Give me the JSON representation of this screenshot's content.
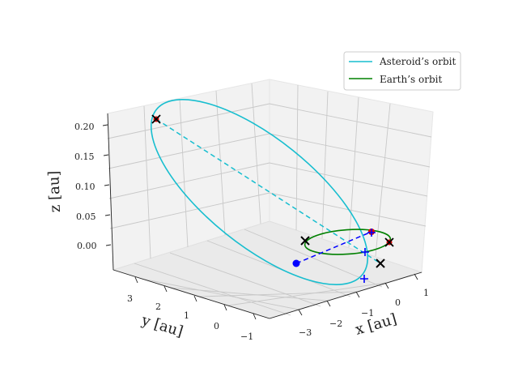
{
  "chart_data": {
    "type": "scatter",
    "projection": "3d",
    "axes": {
      "x": {
        "label": "x [au]",
        "ticks": [
          "1",
          "0",
          "−1",
          "−2",
          "−3"
        ]
      },
      "y": {
        "label": "y [au]",
        "ticks": [
          "3",
          "2",
          "1",
          "0",
          "−1"
        ]
      },
      "z": {
        "label": "z [au]",
        "ticks": [
          "0.20",
          "0.15",
          "0.10",
          "0.05",
          "0.00"
        ]
      }
    },
    "grid": true,
    "legend": {
      "placement": "top-right",
      "entries": [
        {
          "name": "Asteroid’s orbit",
          "color": "#17becf"
        },
        {
          "name": "Earth’s orbit",
          "color": "#008000"
        }
      ]
    },
    "series": [
      {
        "name": "Asteroid’s orbit",
        "color": "#17becf",
        "style": "ellipse-solid"
      },
      {
        "name": "Earth’s orbit",
        "color": "#008000",
        "style": "ellipse-solid"
      }
    ],
    "markers": {
      "asteroid_apsides_line_color": "#17becf",
      "earth_apsides_line_color": "#0000ff",
      "x_marker_color": "#000000",
      "red_marker_color": "#e00000",
      "blue_marker_color": "#0000ff"
    }
  }
}
